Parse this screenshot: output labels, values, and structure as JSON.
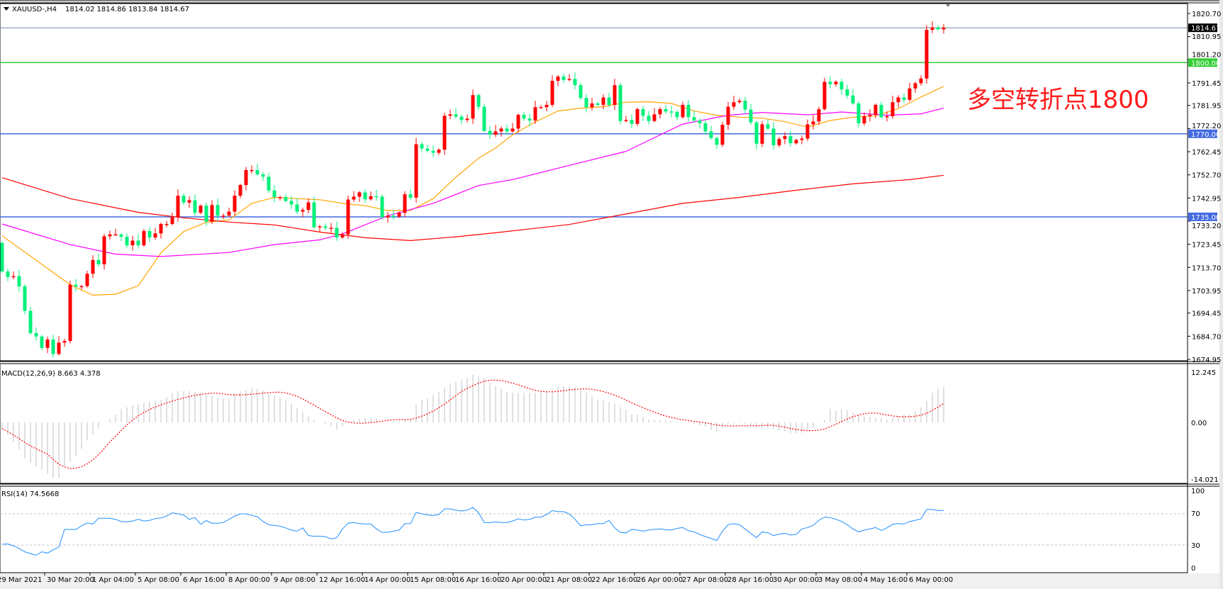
{
  "header": {
    "symbol": "XAUUSD-,H4",
    "ohlc": "1814.02 1814.86 1813.84 1814.67"
  },
  "annotation": "多空转折点1800",
  "colors": {
    "bull_candle": "#ff0000",
    "bear_candle": "#00f07a",
    "ma_fast": "#ffa500",
    "ma_mid": "#ff00ff",
    "ma_slow": "#ff0000",
    "level_1800": "#32cd32",
    "level_blue": "#4169e1",
    "current_price": "#778899",
    "macd_hist": "#c0c0c0",
    "macd_signal": "#ff0000",
    "rsi": "#1e90ff"
  },
  "price_axis": {
    "ticks": [
      "1820.70",
      "1810.95",
      "1801.20",
      "1791.45",
      "1781.95",
      "1772.20",
      "1762.45",
      "1752.70",
      "1742.95",
      "1733.20",
      "1723.45",
      "1713.70",
      "1703.95",
      "1694.45",
      "1684.70",
      "1674.95"
    ],
    "current_price": "1814.67"
  },
  "levels": [
    {
      "price": 1800.0,
      "label": "1800.00",
      "color": "#32cd32"
    },
    {
      "price": 1770.0,
      "label": "1770.00",
      "color": "#4169e1"
    },
    {
      "price": 1735.0,
      "label": "1735.00",
      "color": "#4169e1"
    }
  ],
  "time_axis": [
    "29 Mar 2021",
    "30 Mar 20:00",
    "1 Apr 04:00",
    "5 Apr 08:00",
    "6 Apr 16:00",
    "8 Apr 00:00",
    "9 Apr 08:00",
    "12 Apr 16:00",
    "14 Apr 00:00",
    "15 Apr 08:00",
    "16 Apr 16:00",
    "20 Apr 00:00",
    "21 Apr 08:00",
    "22 Apr 16:00",
    "26 Apr 00:00",
    "27 Apr 08:00",
    "28 Apr 16:00",
    "30 Apr 00:00",
    "3 May 08:00",
    "4 May 16:00",
    "6 May 00:00"
  ],
  "macd": {
    "label": "MACD(12,26,9) 8.663 4.378",
    "axis": [
      "12.245",
      "0.00",
      "-14.021"
    ]
  },
  "rsi": {
    "label": "RSI(14) 74.5668",
    "axis": [
      "100",
      "70",
      "30",
      "0"
    ]
  },
  "chart_data": {
    "type": "candlestick",
    "timeframe": "H4",
    "first_open": 1724,
    "ylim": [
      1674.95,
      1820.7
    ],
    "closes": [
      1712,
      1709.7,
      1710,
      1705.7,
      1695.4,
      1686,
      1684.6,
      1679.8,
      1683.3,
      1677.2,
      1682,
      1682.7,
      1706.4,
      1705.7,
      1705.8,
      1711,
      1716.8,
      1715,
      1726.8,
      1727.6,
      1727.6,
      1726.6,
      1723,
      1725,
      1723,
      1729,
      1726.3,
      1728,
      1732,
      1732,
      1734.8,
      1743.9,
      1741,
      1742,
      1736.7,
      1739.7,
      1733,
      1740,
      1735.5,
      1735.5,
      1737.2,
      1743.9,
      1748.4,
      1754.7,
      1754.7,
      1752.9,
      1751.9,
      1746.1,
      1743.3,
      1743.3,
      1741.7,
      1740.2,
      1737.2,
      1737.9,
      1741.1,
      1730.6,
      1731,
      1730.4,
      1730.4,
      1726.3,
      1727.6,
      1742.3,
      1743.5,
      1745.3,
      1742.4,
      1743.7,
      1743.5,
      1734.8,
      1735.5,
      1735.1,
      1736.7,
      1744.5,
      1743.1,
      1765.6,
      1763.8,
      1762.8,
      1762,
      1763.3,
      1777.6,
      1778.2,
      1777.2,
      1775.8,
      1776.4,
      1786.3,
      1781.4,
      1771.2,
      1769.6,
      1771,
      1772.2,
      1771,
      1772.2,
      1778,
      1776.4,
      1775.6,
      1781.2,
      1781.2,
      1782.2,
      1792.3,
      1794.1,
      1792.7,
      1793.1,
      1790.5,
      1785.1,
      1781.2,
      1782.8,
      1782.2,
      1785.3,
      1782.2,
      1790.5,
      1775.4,
      1775.8,
      1774.2,
      1780.4,
      1777.6,
      1775.4,
      1778.2,
      1780.4,
      1779.4,
      1779.2,
      1777,
      1782.2,
      1777,
      1775.6,
      1774.4,
      1771,
      1768.2,
      1765.4,
      1773.8,
      1781.4,
      1783.3,
      1783.9,
      1780.2,
      1774.8,
      1765.8,
      1774,
      1772.2,
      1765.2,
      1767.8,
      1769,
      1766,
      1767.4,
      1768,
      1774,
      1775.2,
      1780.4,
      1791.9,
      1790.9,
      1791.9,
      1788.7,
      1786.1,
      1782.8,
      1774.4,
      1777.4,
      1778,
      1782.2,
      1777,
      1777.4,
      1783.3,
      1785.3,
      1784.3,
      1789.1,
      1791.3,
      1793.3,
      1813.8,
      1814.8,
      1814,
      1814.67
    ],
    "moving_averages": [
      {
        "color": "#ffa500",
        "points": [
          [
            0,
            1727
          ],
          [
            12,
            1706.4
          ],
          [
            16,
            1702
          ],
          [
            20,
            1702.4
          ],
          [
            24,
            1706
          ],
          [
            28,
            1719.8
          ],
          [
            32,
            1728.8
          ],
          [
            36,
            1732.7
          ],
          [
            40,
            1733.7
          ],
          [
            44,
            1740.7
          ],
          [
            48,
            1743.2
          ],
          [
            52,
            1742.7
          ],
          [
            56,
            1742.2
          ],
          [
            60,
            1740.7
          ],
          [
            64,
            1739.7
          ],
          [
            68,
            1737.7
          ],
          [
            72,
            1737.7
          ],
          [
            76,
            1742.7
          ],
          [
            80,
            1751.7
          ],
          [
            84,
            1759.7
          ],
          [
            87,
            1764
          ],
          [
            90,
            1769.6
          ],
          [
            94,
            1775
          ],
          [
            98,
            1779.6
          ],
          [
            102,
            1780.8
          ],
          [
            106,
            1781.4
          ],
          [
            110,
            1783.3
          ],
          [
            114,
            1783.5
          ],
          [
            118,
            1782.8
          ],
          [
            122,
            1779.6
          ],
          [
            126,
            1777.8
          ],
          [
            130,
            1777
          ],
          [
            134,
            1776.6
          ],
          [
            138,
            1775.1
          ],
          [
            142,
            1772.8
          ],
          [
            146,
            1775.6
          ],
          [
            150,
            1777
          ],
          [
            154,
            1777.6
          ],
          [
            158,
            1780.6
          ],
          [
            162,
            1785.5
          ],
          [
            166,
            1790
          ]
        ]
      },
      {
        "color": "#ff00ff",
        "points": [
          [
            0,
            1732
          ],
          [
            12,
            1723.3
          ],
          [
            20,
            1719.3
          ],
          [
            28,
            1718.3
          ],
          [
            40,
            1720
          ],
          [
            48,
            1723.3
          ],
          [
            56,
            1725.3
          ],
          [
            60,
            1727.8
          ],
          [
            68,
            1735.5
          ],
          [
            76,
            1740.7
          ],
          [
            84,
            1748.2
          ],
          [
            90,
            1750.7
          ],
          [
            100,
            1756.7
          ],
          [
            110,
            1762.6
          ],
          [
            120,
            1774.1
          ],
          [
            128,
            1777.8
          ],
          [
            134,
            1779
          ],
          [
            142,
            1778
          ],
          [
            148,
            1779.2
          ],
          [
            156,
            1777.8
          ],
          [
            162,
            1778.4
          ],
          [
            166,
            1780.8
          ]
        ]
      },
      {
        "color": "#ff0000",
        "points": [
          [
            0,
            1751.5
          ],
          [
            12,
            1742.7
          ],
          [
            24,
            1736.9
          ],
          [
            32,
            1734.6
          ],
          [
            40,
            1732.8
          ],
          [
            48,
            1731.6
          ],
          [
            56,
            1728.6
          ],
          [
            64,
            1726.2
          ],
          [
            72,
            1725
          ],
          [
            80,
            1726.6
          ],
          [
            87,
            1728.3
          ],
          [
            100,
            1731.8
          ],
          [
            110,
            1736.2
          ],
          [
            120,
            1740.7
          ],
          [
            130,
            1743.2
          ],
          [
            140,
            1746.2
          ],
          [
            150,
            1748.9
          ],
          [
            160,
            1750.7
          ],
          [
            166,
            1752.5
          ]
        ]
      }
    ],
    "macd_histogram": [
      -1.5,
      -3,
      -4.7,
      -6.5,
      -8.7,
      -9.8,
      -10.7,
      -11.6,
      -12.5,
      -13.5,
      -13.5,
      -10.7,
      -9.6,
      -8.2,
      -6.4,
      -4.4,
      -3,
      -1.3,
      0,
      0.9,
      1.9,
      3.3,
      3.7,
      4.2,
      4.5,
      4.8,
      5.1,
      5.3,
      5.5,
      6.2,
      7.1,
      7.5,
      7.6,
      7.6,
      7.5,
      7.2,
      6.8,
      6.5,
      6,
      5.8,
      5.8,
      7.1,
      7.6,
      7.9,
      8.2,
      8.1,
      7.8,
      7.1,
      6.5,
      6,
      5.3,
      4.5,
      3.6,
      2.5,
      1.6,
      0.6,
      0,
      -0.4,
      -0.9,
      -1.8,
      -1,
      0.2,
      0.6,
      0.9,
      1,
      1.2,
      1,
      0.5,
      0.3,
      0.4,
      0.3,
      0.6,
      1,
      4.3,
      5.5,
      5.9,
      6.6,
      7.5,
      8.5,
      9.4,
      9.9,
      10.4,
      10.8,
      11.6,
      11.2,
      10.8,
      9.8,
      8.9,
      8.2,
      7.5,
      7.2,
      7.2,
      7.2,
      7.2,
      7.2,
      7.5,
      7.8,
      8.2,
      8.6,
      8.7,
      8.7,
      8.5,
      8.2,
      7.4,
      6.5,
      5.6,
      5.3,
      4.9,
      4.5,
      3.7,
      3,
      1.9,
      1.8,
      1.4,
      0.7,
      0.6,
      0.5,
      0.5,
      0.4,
      0.2,
      0,
      -0.2,
      -0.4,
      -0.7,
      -1.1,
      -1.8,
      -2.1,
      -1.1,
      -0.3,
      -0.1,
      0.2,
      -0.3,
      -0.7,
      -1.1,
      -1.3,
      -1.3,
      -1.6,
      -2,
      -2.2,
      -2.7,
      -2.6,
      -2.5,
      -1.9,
      -1.1,
      -0.1,
      0.6,
      3.3,
      2.9,
      3.3,
      3,
      2.4,
      1.8,
      1.6,
      1.4,
      1,
      1.2,
      0.7,
      1.2,
      1.6,
      1.9,
      2,
      2.6,
      3.7,
      5.3,
      7.2,
      8.2,
      8.663
    ],
    "macd_ylim": [
      -14.021,
      12.245
    ],
    "rsi_values": [
      31,
      31.5,
      29,
      25.6,
      21.4,
      19,
      17,
      21.4,
      19.7,
      24,
      27.5,
      50,
      50,
      50,
      54.7,
      58.3,
      57,
      64.4,
      64.4,
      64.4,
      63,
      60.3,
      59.7,
      60.8,
      63,
      60.8,
      61.7,
      63.9,
      64.7,
      67.2,
      71.4,
      70,
      68.6,
      63,
      65.3,
      56.7,
      61.4,
      58,
      58,
      58.9,
      63,
      67.2,
      70,
      70,
      68,
      66.4,
      60.3,
      56,
      55.3,
      54.2,
      52,
      49.2,
      47.8,
      52,
      42.2,
      41.4,
      41.4,
      40.8,
      38,
      39.4,
      50.6,
      58,
      58.9,
      57.5,
      57,
      57,
      50.6,
      46.4,
      46.4,
      47.8,
      49.2,
      57.5,
      57.5,
      72,
      70,
      68.6,
      68,
      69.2,
      76.4,
      76.4,
      74.7,
      73.6,
      74.7,
      78.3,
      71.4,
      58.9,
      58.6,
      59.7,
      58.9,
      58.9,
      60.8,
      63.6,
      62.2,
      63,
      65.8,
      65.8,
      69.2,
      74.2,
      72.8,
      72.8,
      70,
      63,
      54.7,
      56,
      56,
      57.5,
      57.5,
      61.7,
      52,
      46.4,
      45.6,
      50.3,
      49.2,
      47.8,
      49.2,
      50.3,
      50.6,
      49.7,
      49.2,
      51.4,
      52.5,
      48.3,
      46.9,
      43.6,
      40.8,
      38.6,
      35.8,
      47.8,
      56,
      57.5,
      56,
      50.6,
      45,
      39.4,
      46.9,
      45.8,
      42.2,
      44,
      45,
      43,
      43.6,
      50.6,
      52.5,
      55.3,
      61.7,
      65.8,
      65.3,
      63,
      60.3,
      56,
      50.6,
      46.9,
      49.2,
      50.6,
      52.5,
      48.6,
      52,
      56.7,
      57.5,
      57,
      60.3,
      61.7,
      63.6,
      75.6,
      75.6,
      74.2,
      74.5668
    ],
    "rsi_levels": [
      70,
      30
    ]
  }
}
